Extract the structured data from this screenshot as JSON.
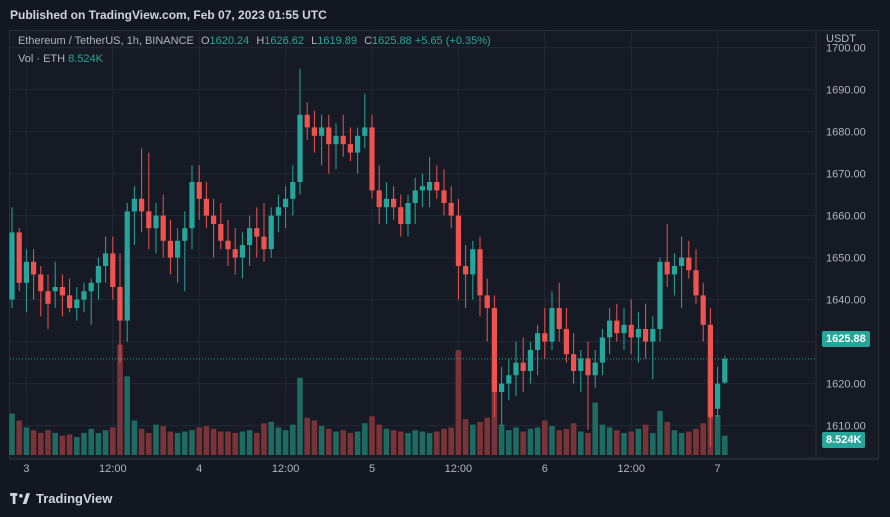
{
  "header": {
    "published": "Published on TradingView.com, Feb 07, 2023 01:55 UTC"
  },
  "legend": {
    "symbol": "Ethereum / TetherUS, 1h, BINANCE",
    "open_label": "O",
    "open": "1620.24",
    "high_label": "H",
    "high": "1626.62",
    "low_label": "L",
    "low": "1619.89",
    "close_label": "C",
    "close": "1625.88",
    "change": "+5.65 (+0.35%)"
  },
  "volume": {
    "label": "Vol · ETH",
    "value": "8.524K"
  },
  "axis": {
    "currency": "USDT"
  },
  "badges": {
    "price": "1625.88",
    "volume": "8.524K"
  },
  "footer": {
    "brand": "TradingView"
  },
  "colors": {
    "up": "#26a69a",
    "down": "#ef5350",
    "up_vol": "#1f6b64",
    "down_vol": "#7a3336",
    "grid": "#232836"
  },
  "chart_data": {
    "type": "candlestick",
    "title": "Ethereum / TetherUS, 1h, BINANCE",
    "ylabel": "USDT",
    "ylim": [
      1603,
      1703
    ],
    "y_ticks": [
      1610,
      1620,
      1630,
      1640,
      1650,
      1660,
      1670,
      1680,
      1690,
      1700
    ],
    "y_tick_labels": [
      "1610.00",
      "1620.00",
      "1630.00",
      "1640.00",
      "1650.00",
      "1660.00",
      "1670.00",
      "1680.00",
      "1690.00",
      "1700.00"
    ],
    "x_ticks": [
      {
        "label": "3",
        "index": 2
      },
      {
        "label": "12:00",
        "index": 14
      },
      {
        "label": "4",
        "index": 26
      },
      {
        "label": "12:00",
        "index": 38
      },
      {
        "label": "5",
        "index": 50
      },
      {
        "label": "12:00",
        "index": 62
      },
      {
        "label": "6",
        "index": 74
      },
      {
        "label": "12:00",
        "index": 86
      },
      {
        "label": "7",
        "index": 98
      }
    ],
    "last_price": 1625.88,
    "candles": [
      [
        1640,
        1662,
        1638,
        1656,
        3
      ],
      [
        1656,
        1657,
        1642,
        1644,
        2.5
      ],
      [
        1644,
        1652,
        1637,
        1649,
        2
      ],
      [
        1649,
        1652,
        1640,
        1646,
        1.8
      ],
      [
        1646,
        1648,
        1636,
        1642,
        1.6
      ],
      [
        1642,
        1646,
        1633,
        1639,
        1.8
      ],
      [
        1642,
        1649,
        1638,
        1643,
        1.6
      ],
      [
        1643,
        1646,
        1636,
        1641,
        1.4
      ],
      [
        1641,
        1645,
        1637,
        1638,
        1.5
      ],
      [
        1638,
        1643,
        1635,
        1640,
        1.3
      ],
      [
        1640,
        1644,
        1637,
        1642,
        1.6
      ],
      [
        1642,
        1645,
        1634,
        1644,
        1.9
      ],
      [
        1644,
        1650,
        1640,
        1648,
        1.6
      ],
      [
        1648,
        1655,
        1644,
        1651,
        1.8
      ],
      [
        1651,
        1655,
        1640,
        1643,
        2
      ],
      [
        1643,
        1651,
        1625,
        1635,
        8
      ],
      [
        1635,
        1663,
        1630,
        1661,
        5.7
      ],
      [
        1661,
        1667,
        1653,
        1664,
        2.5
      ],
      [
        1664,
        1676,
        1656,
        1661,
        1.9
      ],
      [
        1661,
        1675,
        1652,
        1657,
        1.6
      ],
      [
        1657,
        1663,
        1651,
        1660,
        2.2
      ],
      [
        1660,
        1665,
        1650,
        1654,
        2.1
      ],
      [
        1654,
        1659,
        1646,
        1650,
        1.7
      ],
      [
        1650,
        1657,
        1644,
        1654,
        1.6
      ],
      [
        1654,
        1661,
        1642,
        1657,
        1.7
      ],
      [
        1657,
        1672,
        1652,
        1668,
        1.8
      ],
      [
        1668,
        1672,
        1659,
        1664,
        2
      ],
      [
        1664,
        1668,
        1657,
        1660,
        2.1
      ],
      [
        1660,
        1664,
        1650,
        1658,
        1.9
      ],
      [
        1658,
        1663,
        1652,
        1654,
        1.7
      ],
      [
        1654,
        1659,
        1648,
        1652,
        1.7
      ],
      [
        1652,
        1657,
        1646,
        1650,
        1.6
      ],
      [
        1650,
        1656,
        1645,
        1653,
        1.7
      ],
      [
        1653,
        1660,
        1648,
        1657,
        1.8
      ],
      [
        1657,
        1662,
        1650,
        1655,
        1.6
      ],
      [
        1655,
        1663,
        1649,
        1652,
        2.3
      ],
      [
        1652,
        1662,
        1650,
        1660,
        2.4
      ],
      [
        1660,
        1665,
        1656,
        1662,
        2
      ],
      [
        1662,
        1667,
        1657,
        1664,
        1.8
      ],
      [
        1664,
        1672,
        1660,
        1668,
        2.2
      ],
      [
        1668,
        1695,
        1665,
        1684,
        5.6
      ],
      [
        1684,
        1687,
        1678,
        1681,
        2.7
      ],
      [
        1681,
        1685,
        1675,
        1679,
        2.5
      ],
      [
        1679,
        1684,
        1672,
        1681,
        2.1
      ],
      [
        1681,
        1684,
        1670,
        1677,
        1.9
      ],
      [
        1677,
        1682,
        1671,
        1679,
        1.7
      ],
      [
        1679,
        1684,
        1674,
        1677,
        1.8
      ],
      [
        1677,
        1681,
        1673,
        1675,
        1.6
      ],
      [
        1675,
        1681,
        1670,
        1679,
        1.7
      ],
      [
        1679,
        1689,
        1676,
        1681,
        2.3
      ],
      [
        1681,
        1684,
        1664,
        1666,
        2.8
      ],
      [
        1666,
        1672,
        1658,
        1662,
        2.2
      ],
      [
        1662,
        1668,
        1658,
        1664,
        1.9
      ],
      [
        1664,
        1667,
        1659,
        1662,
        1.8
      ],
      [
        1662,
        1665,
        1655,
        1658,
        1.7
      ],
      [
        1658,
        1665,
        1655,
        1663,
        1.6
      ],
      [
        1663,
        1669,
        1658,
        1666,
        1.8
      ],
      [
        1666,
        1670,
        1662,
        1667,
        1.7
      ],
      [
        1666,
        1674,
        1662,
        1668,
        1.6
      ],
      [
        1668,
        1672,
        1664,
        1666,
        1.7
      ],
      [
        1666,
        1671,
        1660,
        1663,
        1.9
      ],
      [
        1663,
        1667,
        1657,
        1660,
        2
      ],
      [
        1660,
        1664,
        1640,
        1648,
        7.6
      ],
      [
        1648,
        1653,
        1638,
        1646,
        2.6
      ],
      [
        1646,
        1654,
        1640,
        1652,
        2.2
      ],
      [
        1652,
        1655,
        1636,
        1641,
        2.4
      ],
      [
        1641,
        1645,
        1630,
        1638,
        2.7
      ],
      [
        1638,
        1641,
        1612,
        1618,
        6.4
      ],
      [
        1618,
        1624,
        1610,
        1620,
        2.2
      ],
      [
        1620,
        1626,
        1616,
        1622,
        1.8
      ],
      [
        1622,
        1630,
        1617,
        1625,
        2
      ],
      [
        1625,
        1631,
        1618,
        1623,
        1.7
      ],
      [
        1623,
        1630,
        1620,
        1628,
        1.9
      ],
      [
        1628,
        1634,
        1622,
        1632,
        2
      ],
      [
        1632,
        1638,
        1626,
        1630,
        2.5
      ],
      [
        1630,
        1642,
        1628,
        1638,
        2.1
      ],
      [
        1638,
        1644,
        1630,
        1633,
        1.8
      ],
      [
        1633,
        1638,
        1625,
        1627,
        1.9
      ],
      [
        1627,
        1632,
        1620,
        1623,
        2.3
      ],
      [
        1623,
        1628,
        1618,
        1626,
        1.7
      ],
      [
        1626,
        1630,
        1609,
        1622,
        1.6
      ],
      [
        1622,
        1628,
        1619,
        1625,
        3.8
      ],
      [
        1625,
        1633,
        1622,
        1631,
        2.2
      ],
      [
        1631,
        1638,
        1627,
        1635,
        2
      ],
      [
        1635,
        1639,
        1630,
        1632,
        1.8
      ],
      [
        1632,
        1638,
        1628,
        1634,
        1.6
      ],
      [
        1634,
        1640,
        1627,
        1631,
        1.7
      ],
      [
        1631,
        1637,
        1625,
        1633,
        1.9
      ],
      [
        1633,
        1639,
        1626,
        1630,
        2.2
      ],
      [
        1630,
        1636,
        1621,
        1633,
        1.6
      ],
      [
        1633,
        1650,
        1630,
        1649,
        3.2
      ],
      [
        1649,
        1658,
        1643,
        1646,
        2.4
      ],
      [
        1646,
        1651,
        1641,
        1648,
        1.8
      ],
      [
        1648,
        1655,
        1638,
        1650,
        1.6
      ],
      [
        1650,
        1654,
        1645,
        1647,
        1.7
      ],
      [
        1647,
        1652,
        1639,
        1641,
        1.9
      ],
      [
        1641,
        1644,
        1630,
        1634,
        2.3
      ],
      [
        1634,
        1638,
        1605,
        1612,
        6.8
      ],
      [
        1614,
        1624,
        1612,
        1620,
        2.9
      ],
      [
        1620.24,
        1626.62,
        1619.89,
        1625.88,
        1.4
      ]
    ]
  }
}
